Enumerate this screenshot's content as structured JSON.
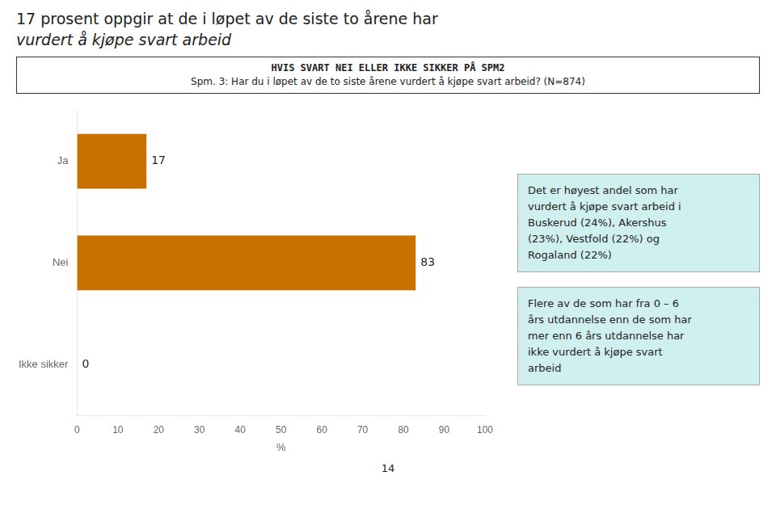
{
  "chart_data": {
    "type": "bar",
    "orientation": "horizontal",
    "title": [
      "17 prosent oppgir at de i løpet av de siste to årene har",
      "vurdert å kjøpe svart arbeid"
    ],
    "subtitle": [
      "HVIS SVART NEI ELLER IKKE SIKKER PÅ SPM2",
      "Spm. 3: Har du i løpet av de to siste årene vurdert å kjøpe svart arbeid? (N=874)"
    ],
    "categories": [
      "Ja",
      "Nei",
      "Ikke sikker"
    ],
    "values": [
      17,
      83,
      0
    ],
    "color": "#C87000",
    "xlabel": "%",
    "xlim": [
      0,
      100
    ],
    "xticks": [
      0,
      10,
      20,
      30,
      40,
      50,
      60,
      70,
      80,
      90,
      100
    ],
    "grid": false,
    "data_labels": true,
    "annotations": [
      "Det er høyest andel som har\nvurdert å kjøpe svart arbeid i\nBuskerud (24%), Akershus\n(23%),  Vestfold (22%) og\nRogaland (22%)",
      "Flere av de som har fra 0 – 6\nårs utdannelse enn de som har\nmer enn 6 års utdannelse har\nikke vurdert å kjøpe svart\narbeid",
      "14"
    ]
  }
}
